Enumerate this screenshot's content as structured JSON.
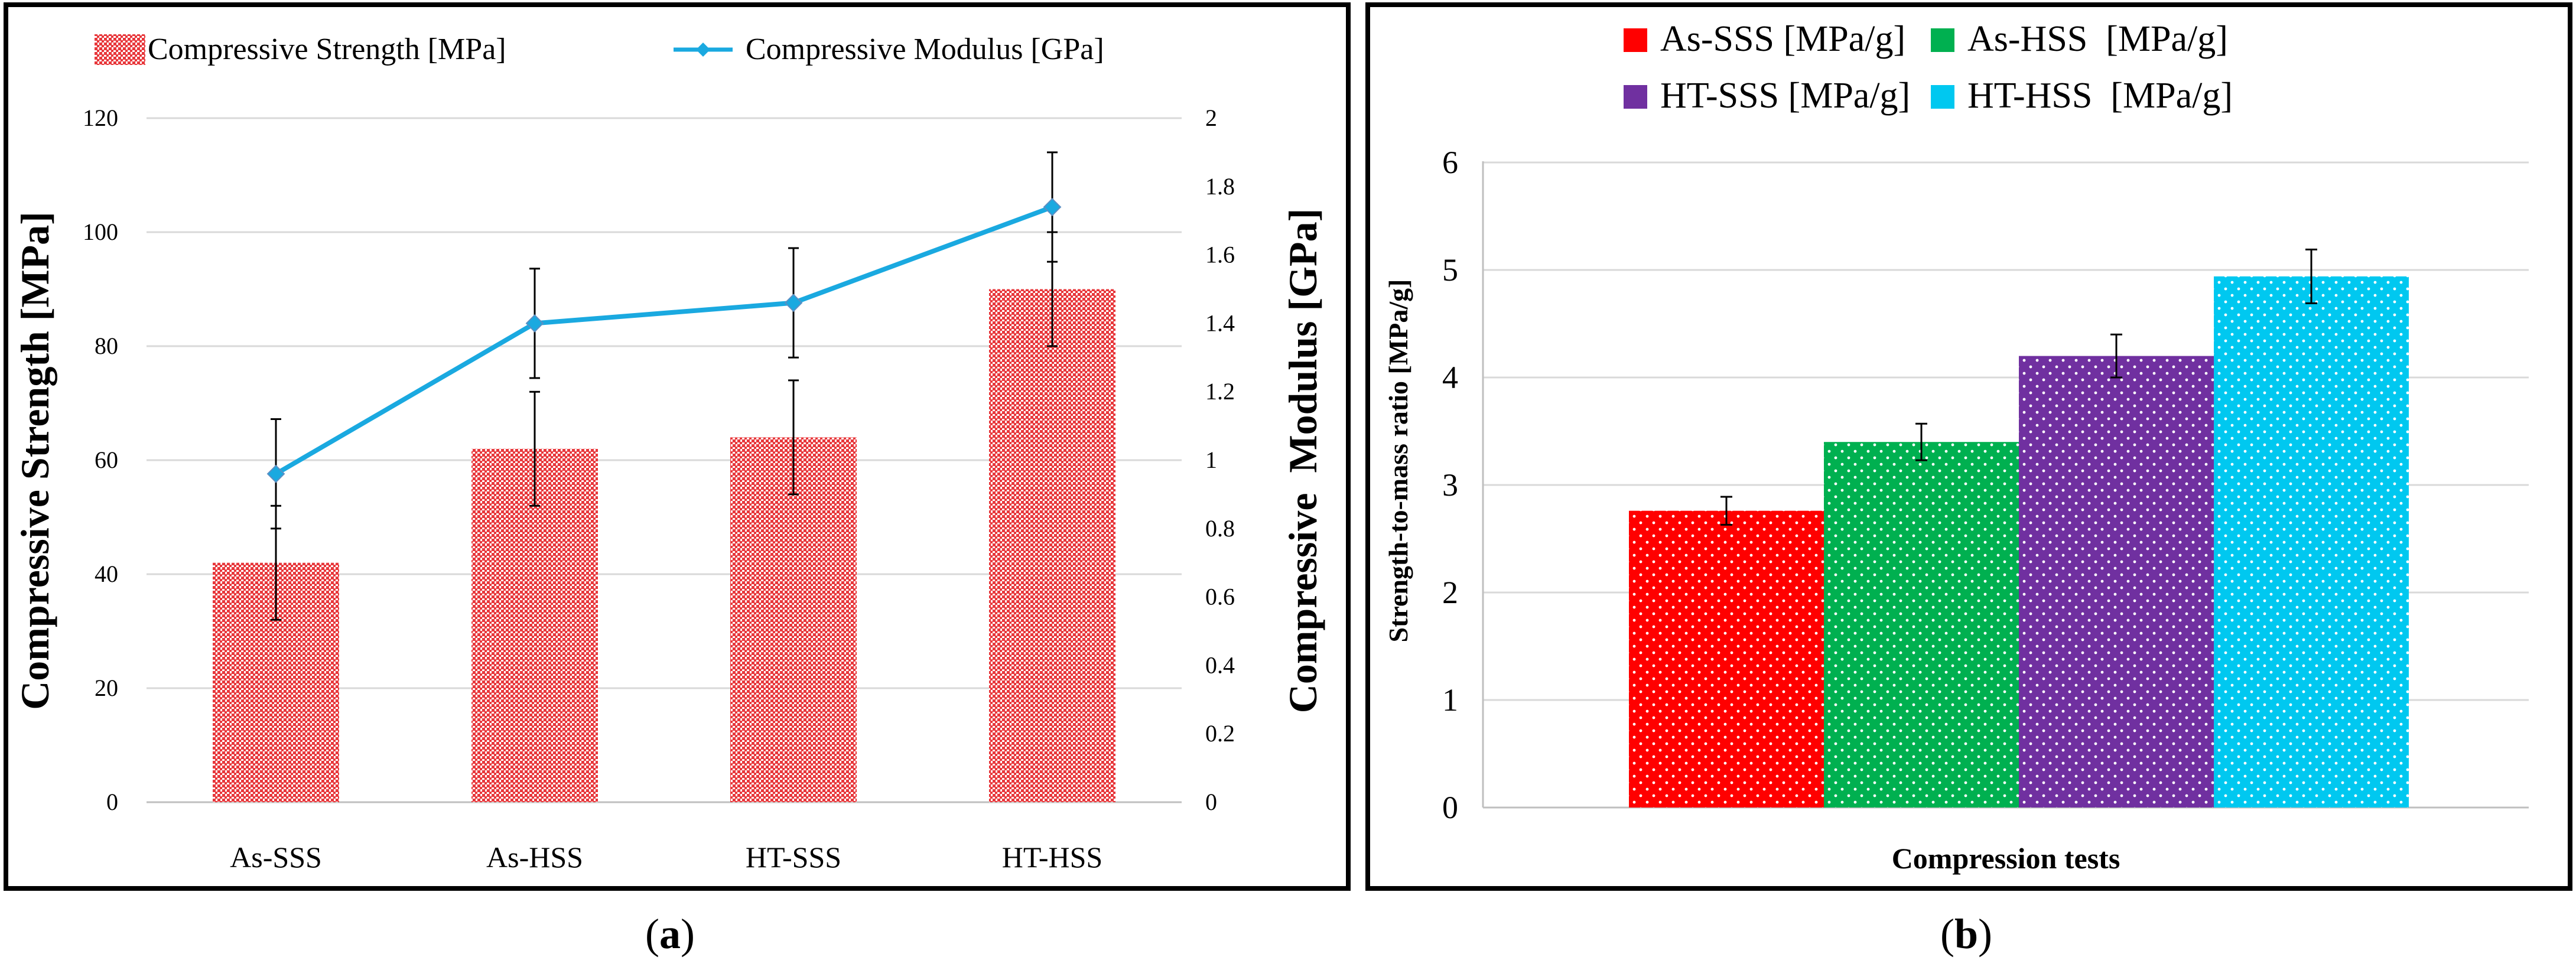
{
  "panels": [
    {
      "id": "a",
      "caption_open": "(",
      "caption_letter": "a",
      "caption_close": ")"
    },
    {
      "id": "b",
      "caption_open": "(",
      "caption_letter": "b",
      "caption_close": ")"
    }
  ],
  "colors": {
    "strength_bar": "#e8383c",
    "modulus_line": "#1aa9e0",
    "as_sss": "#ff0000",
    "as_hss": "#00b050",
    "ht_sss": "#7030a0",
    "ht_hss": "#00c8f0"
  },
  "chart_data": [
    {
      "panel": "a",
      "type": "bar",
      "combo": "bar+line (dual axis)",
      "categories": [
        "As-SSS",
        "As-HSS",
        "HT-SSS",
        "HT-HSS"
      ],
      "series": [
        {
          "name": "Compressive Strength [MPa]",
          "type": "bar",
          "axis": "left",
          "values": [
            42,
            62,
            64,
            90
          ],
          "errors": [
            10,
            10,
            10,
            10
          ],
          "pattern": "dense dots"
        },
        {
          "name": "Compressive Modulus [GPa]",
          "type": "line",
          "axis": "right",
          "values": [
            0.96,
            1.4,
            1.46,
            1.74
          ],
          "errors": [
            0.16,
            0.16,
            0.16,
            0.16
          ],
          "marker": "diamond"
        }
      ],
      "ylabel_left": "Compressive Strength [MPa]",
      "ylabel_right": "Compressive  Modulus [GPa]",
      "ylim_left": [
        0,
        120
      ],
      "yticks_left": [
        "0",
        "20",
        "40",
        "60",
        "80",
        "100",
        "120"
      ],
      "ylim_right": [
        0,
        2
      ],
      "yticks_right": [
        "0",
        "0.2",
        "0.4",
        "0.6",
        "0.8",
        "1",
        "1.2",
        "1.4",
        "1.6",
        "1.8",
        "2"
      ],
      "grid": true,
      "legend_position": "top",
      "legend": [
        "Compressive Strength [MPa]",
        "Compressive Modulus [GPa]"
      ]
    },
    {
      "panel": "b",
      "type": "bar",
      "categories": [
        "Compression tests"
      ],
      "xlabel": "Compression tests",
      "ylabel": "Strength-to-mass ratio [MPa/g]",
      "ylim": [
        0,
        6
      ],
      "yticks": [
        "0",
        "1",
        "2",
        "3",
        "4",
        "5",
        "6"
      ],
      "series": [
        {
          "name": "As-SSS [MPa/g]",
          "values": [
            2.76
          ],
          "errors": [
            0.13
          ]
        },
        {
          "name": "As-HSS  [MPa/g]",
          "values": [
            3.4
          ],
          "errors": [
            0.17
          ]
        },
        {
          "name": "HT-SSS [MPa/g]",
          "values": [
            4.2
          ],
          "errors": [
            0.2
          ]
        },
        {
          "name": "HT-HSS  [MPa/g]",
          "values": [
            4.94
          ],
          "errors": [
            0.25
          ]
        }
      ],
      "grid": true,
      "legend_position": "top"
    }
  ]
}
